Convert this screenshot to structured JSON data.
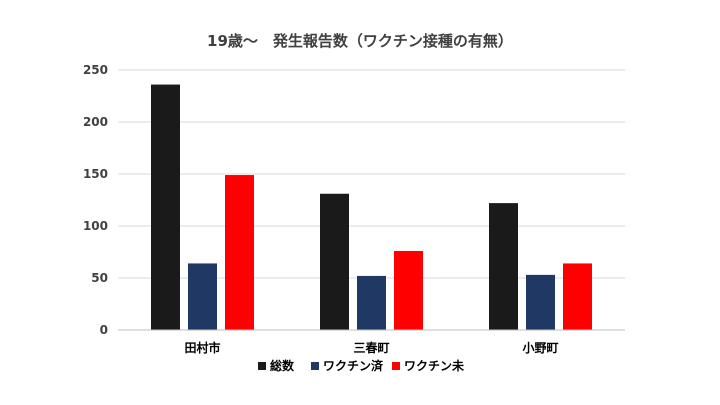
{
  "chart_data": {
    "type": "bar",
    "title": "19歳～　発生報告数（ワクチン接種の有無）",
    "categories": [
      "田村市",
      "三春町",
      "小野町"
    ],
    "series": [
      {
        "name": "総数",
        "values": [
          236,
          131,
          122
        ],
        "color": "#1a1a1a"
      },
      {
        "name": "ワクチン済",
        "values": [
          64,
          52,
          53
        ],
        "color": "#1f3864"
      },
      {
        "name": "ワクチン未",
        "values": [
          149,
          76,
          64
        ],
        "color": "#ff0000"
      }
    ],
    "yticks": [
      "0",
      "50",
      "100",
      "150",
      "200",
      "250"
    ],
    "ylim": [
      0,
      250
    ],
    "grid": true,
    "legend": "bottom"
  }
}
